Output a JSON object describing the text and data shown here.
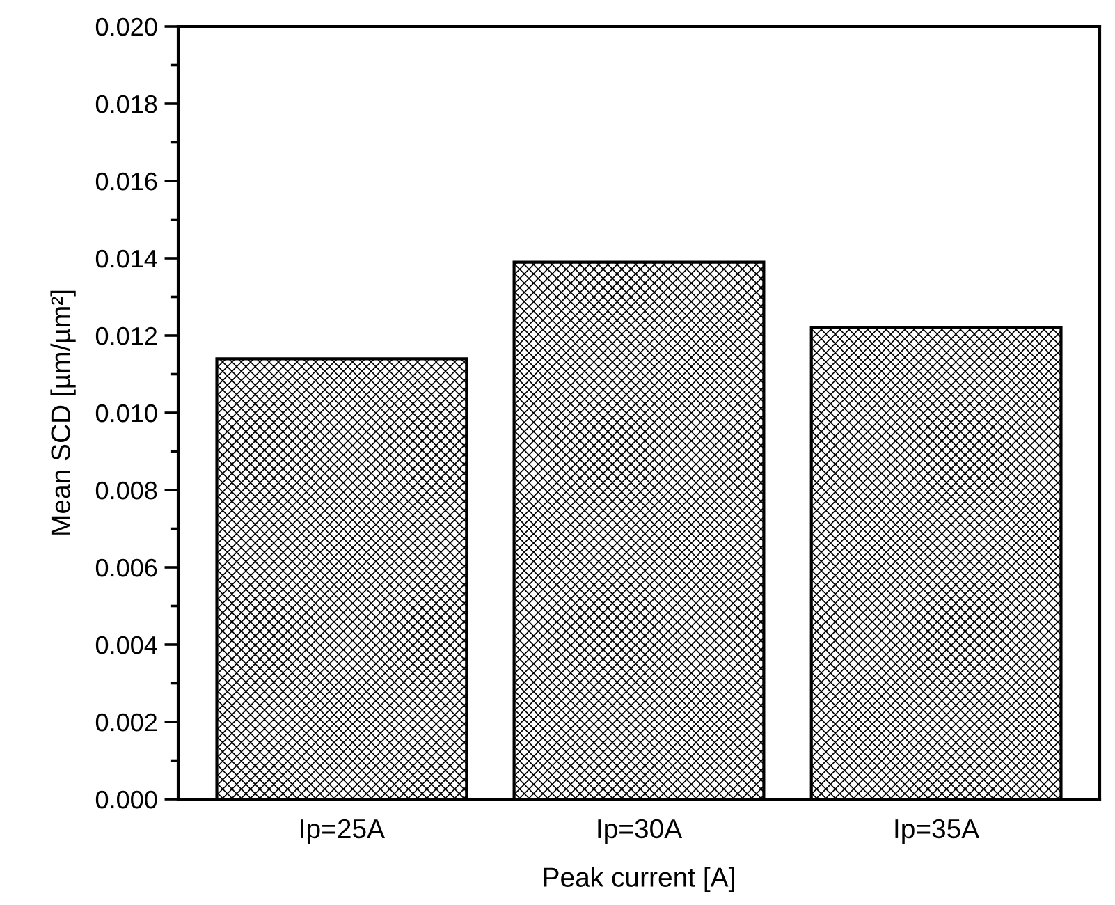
{
  "chart_data": {
    "type": "bar",
    "xlabel": "Peak current [A]",
    "ylabel": "Mean SCD [µm/µm²]",
    "categories": [
      "Ip=25A",
      "Ip=30A",
      "Ip=35A"
    ],
    "values": [
      0.0114,
      0.0139,
      0.0122
    ],
    "color": "#000000",
    "ylim": [
      0,
      0.02
    ],
    "yticks": [
      {
        "value": 0,
        "label": "0.000"
      },
      {
        "value": 0.002,
        "label": "0.002"
      },
      {
        "value": 0.004,
        "label": "0.004"
      },
      {
        "value": 0.006,
        "label": "0.006"
      },
      {
        "value": 0.008,
        "label": "0.008"
      },
      {
        "value": 0.01,
        "label": "0.010"
      },
      {
        "value": 0.012,
        "label": "0.012"
      },
      {
        "value": 0.014,
        "label": "0.014"
      },
      {
        "value": 0.016,
        "label": "0.016"
      },
      {
        "value": 0.018,
        "label": "0.018"
      },
      {
        "value": 0.02,
        "label": "0.020"
      }
    ],
    "grid": false,
    "legend": false
  }
}
